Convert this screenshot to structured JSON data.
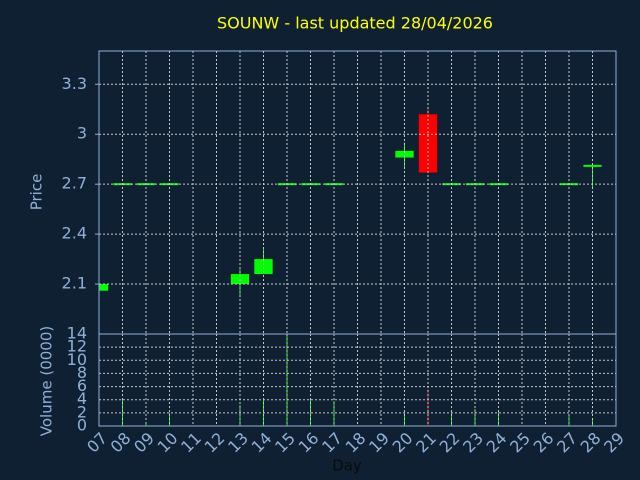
{
  "chart_data": {
    "type": "candlestick",
    "title": "SOUNW - last updated 28/04/2026",
    "x_label": "Day",
    "y_label": "Price",
    "volume_label": "Volume (0000)",
    "x": [
      7,
      8,
      9,
      10,
      13,
      14,
      15,
      16,
      17,
      20,
      21,
      22,
      23,
      24,
      27,
      28
    ],
    "open": [
      2.06,
      2.7,
      2.7,
      2.7,
      2.1,
      2.16,
      2.7,
      2.7,
      2.7,
      2.86,
      3.12,
      2.7,
      2.7,
      2.7,
      2.7,
      2.8
    ],
    "high": [
      2.1,
      2.7,
      2.7,
      2.7,
      2.19,
      2.31,
      2.7,
      2.7,
      2.7,
      2.95,
      3.16,
      2.7,
      2.7,
      2.7,
      2.7,
      2.81
    ],
    "low": [
      2.06,
      2.7,
      2.7,
      2.7,
      2.02,
      2.16,
      2.7,
      2.7,
      2.7,
      2.79,
      2.77,
      2.7,
      2.7,
      2.7,
      2.7,
      2.67
    ],
    "close": [
      2.1,
      2.7,
      2.7,
      2.7,
      2.16,
      2.25,
      2.7,
      2.7,
      2.7,
      2.9,
      2.77,
      2.7,
      2.7,
      2.7,
      2.7,
      2.81
    ],
    "volume": [
      0,
      4,
      0.5,
      2,
      3.2,
      4.1,
      14,
      4.1,
      3.8,
      2.1,
      5.6,
      2.1,
      2.6,
      2.1,
      1.7,
      1
    ],
    "up_color": "#00ff00",
    "down_color": "#ff0000",
    "xlim": [
      7,
      29
    ],
    "xticks": [
      {
        "value": 7,
        "label": "07"
      },
      {
        "value": 8,
        "label": "08"
      },
      {
        "value": 9,
        "label": "09"
      },
      10,
      11,
      12,
      13,
      14,
      15,
      16,
      17,
      18,
      19,
      20,
      21,
      22,
      23,
      24,
      25,
      26,
      27,
      28,
      29
    ],
    "ylim": [
      1.8,
      3.5
    ],
    "yticks": [
      2.1,
      2.4,
      2.7,
      3,
      3.3
    ],
    "volume_lim": [
      0,
      14
    ],
    "volume_ticks": [
      0,
      2,
      4,
      6,
      8,
      10,
      12,
      14
    ],
    "grid": true
  }
}
